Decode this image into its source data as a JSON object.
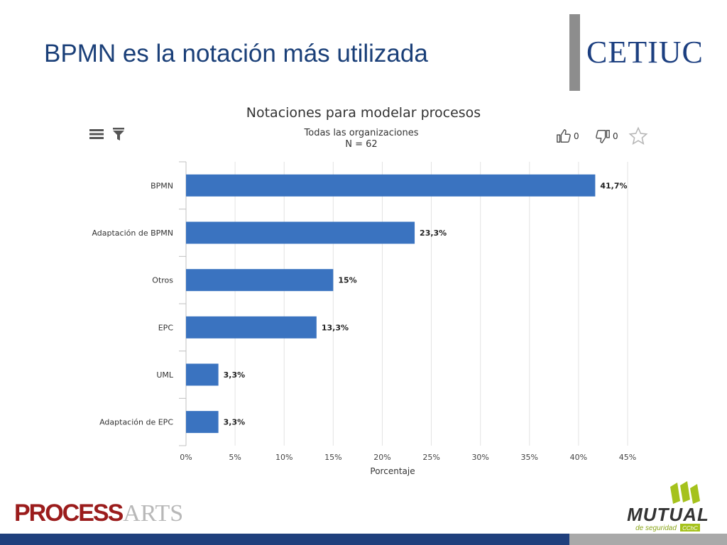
{
  "slide": {
    "title": "BPMN es la notación más utilizada",
    "logo_text": "CETIUC",
    "footer_logo": {
      "part1": "PROCESS",
      "part2": "ARTS"
    },
    "mutual_logo": {
      "name": "MUTUAL",
      "tagline": "de seguridad",
      "badge": "CChC"
    }
  },
  "toolbar": {
    "like_count": "0",
    "dislike_count": "0",
    "icons": [
      "menu-icon",
      "filter-icon",
      "thumbs-up-icon",
      "thumbs-down-icon",
      "star-icon"
    ]
  },
  "chart_data": {
    "type": "bar",
    "orientation": "horizontal",
    "title": "Notaciones para modelar procesos",
    "subtitle_lines": [
      "Todas las organizaciones",
      "N = 62"
    ],
    "categories": [
      "BPMN",
      "Adaptación de BPMN",
      "Otros",
      "EPC",
      "UML",
      "Adaptación de EPC"
    ],
    "values": [
      41.7,
      23.3,
      15,
      13.3,
      3.3,
      3.3
    ],
    "data_labels": [
      "41,7%",
      "23,3%",
      "15%",
      "13,3%",
      "3,3%",
      "3,3%"
    ],
    "xlabel": "Porcentaje",
    "xlim": [
      0,
      45
    ],
    "x_ticks": [
      0,
      5,
      10,
      15,
      20,
      25,
      30,
      35,
      40,
      45
    ],
    "x_tick_labels": [
      "0%",
      "5%",
      "10%",
      "15%",
      "20%",
      "25%",
      "30%",
      "35%",
      "40%",
      "45%"
    ],
    "grid": true,
    "bar_color": "#3a73c0"
  }
}
